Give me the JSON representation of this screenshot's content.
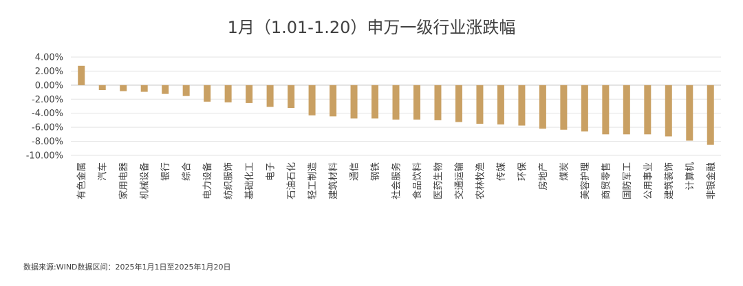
{
  "chart_data": {
    "type": "bar",
    "title": "1月（1.01-1.20）申万一级行业涨跌幅",
    "categories": [
      "有色金属",
      "汽车",
      "家用电器",
      "机械设备",
      "银行",
      "综合",
      "电力设备",
      "纺织服饰",
      "基础化工",
      "电子",
      "石油石化",
      "轻工制造",
      "建筑材料",
      "通信",
      "钢铁",
      "社会服务",
      "食品饮料",
      "医药生物",
      "交通运输",
      "农林牧渔",
      "传媒",
      "环保",
      "房地产",
      "煤炭",
      "美容护理",
      "商贸零售",
      "国防军工",
      "公用事业",
      "建筑装饰",
      "计算机",
      "非银金融"
    ],
    "values": [
      2.75,
      -0.7,
      -0.85,
      -0.95,
      -1.25,
      -1.55,
      -2.35,
      -2.45,
      -2.55,
      -3.1,
      -3.25,
      -4.3,
      -4.45,
      -4.75,
      -4.75,
      -4.9,
      -4.9,
      -5.0,
      -5.25,
      -5.5,
      -5.6,
      -5.75,
      -6.2,
      -6.35,
      -6.6,
      -7.0,
      -7.0,
      -7.0,
      -7.3,
      -7.9,
      -8.5
    ],
    "ylim": [
      -10,
      4
    ],
    "yticks": [
      "4.00%",
      "2.00%",
      "0.00%",
      "-2.00%",
      "-4.00%",
      "-6.00%",
      "-8.00%",
      "-10.00%"
    ],
    "grid": true,
    "bar_color": "#C9A063",
    "source_note": "数据来源:WIND数据区间：2025年1月1日至2025年1月20日"
  }
}
